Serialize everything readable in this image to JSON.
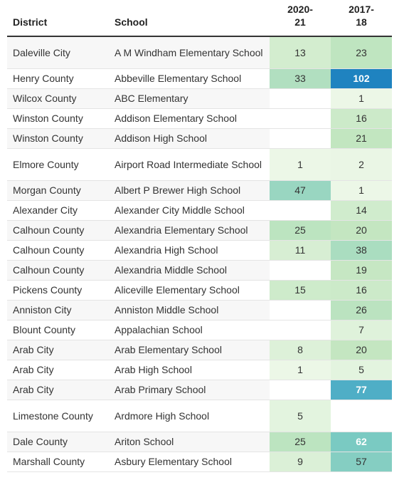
{
  "chart_data": {
    "type": "table",
    "columns": [
      "District",
      "School",
      "2020-\n21",
      "2017-\n18"
    ],
    "rows": [
      {
        "district": "Daleville City",
        "school": "A M Windham Elementary School",
        "v2021": 13,
        "v2018": 23
      },
      {
        "district": "Henry County",
        "school": "Abbeville Elementary School",
        "v2021": 33,
        "v2018": 102
      },
      {
        "district": "Wilcox County",
        "school": "ABC Elementary",
        "v2021": null,
        "v2018": 1
      },
      {
        "district": "Winston County",
        "school": "Addison Elementary School",
        "v2021": null,
        "v2018": 16
      },
      {
        "district": "Winston County",
        "school": "Addison High School",
        "v2021": null,
        "v2018": 21
      },
      {
        "district": "Elmore County",
        "school": "Airport Road Intermediate School",
        "v2021": 1,
        "v2018": 2
      },
      {
        "district": "Morgan County",
        "school": "Albert P Brewer High School",
        "v2021": 47,
        "v2018": 1
      },
      {
        "district": "Alexander City",
        "school": "Alexander City Middle School",
        "v2021": null,
        "v2018": 14
      },
      {
        "district": "Calhoun County",
        "school": "Alexandria Elementary School",
        "v2021": 25,
        "v2018": 20
      },
      {
        "district": "Calhoun County",
        "school": "Alexandria High School",
        "v2021": 11,
        "v2018": 38
      },
      {
        "district": "Calhoun County",
        "school": "Alexandria Middle School",
        "v2021": null,
        "v2018": 19
      },
      {
        "district": "Pickens County",
        "school": "Aliceville Elementary School",
        "v2021": 15,
        "v2018": 16
      },
      {
        "district": "Anniston City",
        "school": "Anniston Middle School",
        "v2021": null,
        "v2018": 26
      },
      {
        "district": "Blount County",
        "school": "Appalachian School",
        "v2021": null,
        "v2018": 7
      },
      {
        "district": "Arab City",
        "school": "Arab Elementary School",
        "v2021": 8,
        "v2018": 20
      },
      {
        "district": "Arab City",
        "school": "Arab High School",
        "v2021": 1,
        "v2018": 5
      },
      {
        "district": "Arab City",
        "school": "Arab Primary School",
        "v2021": null,
        "v2018": 77
      },
      {
        "district": "Limestone County",
        "school": "Ardmore High School",
        "v2021": 5,
        "v2018": null
      },
      {
        "district": "Dale County",
        "school": "Ariton School",
        "v2021": 25,
        "v2018": 62
      },
      {
        "district": "Marshall County",
        "school": "Asbury Elementary School",
        "v2021": 9,
        "v2018": 57
      }
    ],
    "color_scale": {
      "stops": [
        "#eef8e9",
        "#c3e6c0",
        "#a6dbc0",
        "#7ccbc2",
        "#42a6c7",
        "#1f83c0"
      ],
      "domain": [
        0,
        102
      ]
    }
  }
}
